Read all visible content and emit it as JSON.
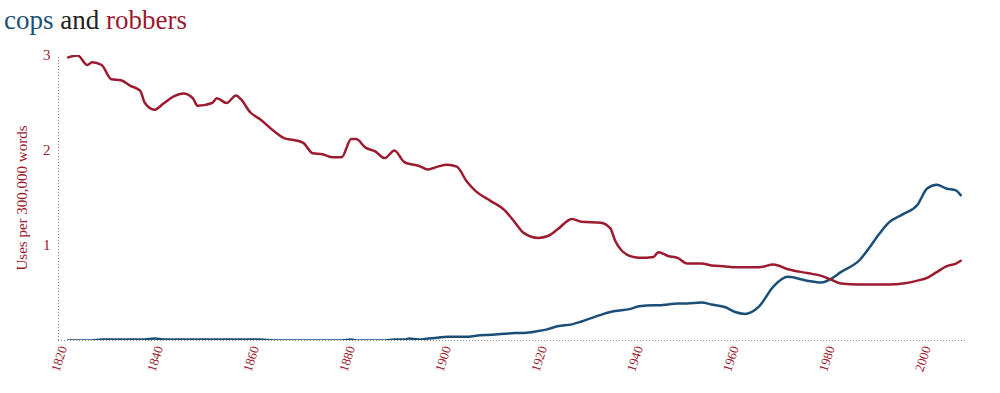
{
  "chart_data": {
    "type": "line",
    "title": "cops and robbers",
    "y_label": "Uses per 300,000 words",
    "x": [
      1821,
      1823,
      1825,
      1826,
      1828,
      1830,
      1832,
      1834,
      1836,
      1837,
      1839,
      1841,
      1843,
      1845,
      1847,
      1848,
      1851,
      1852,
      1854,
      1856,
      1857,
      1859,
      1861,
      1864,
      1866,
      1868,
      1870,
      1872,
      1874,
      1876,
      1878,
      1880,
      1881,
      1883,
      1885,
      1887,
      1889,
      1891,
      1892,
      1894,
      1896,
      1898,
      1900,
      1902,
      1904,
      1906,
      1909,
      1912,
      1914,
      1916,
      1919,
      1921,
      1923,
      1926,
      1928,
      1932,
      1934,
      1935,
      1938,
      1940,
      1943,
      1944,
      1946,
      1948,
      1950,
      1953,
      1955,
      1958,
      1960,
      1962,
      1965,
      1968,
      1971,
      1975,
      1978,
      1980,
      1982,
      1986,
      1988,
      1990,
      1992,
      1995,
      1998,
      2000,
      2002,
      2004,
      2006,
      2007
    ],
    "series": [
      {
        "name": "cops",
        "color": "#1b4f78",
        "values": [
          0,
          0,
          0,
          0,
          0.01,
          0.01,
          0.01,
          0.01,
          0.01,
          0.01,
          0.02,
          0.01,
          0.01,
          0.01,
          0.01,
          0.01,
          0.01,
          0.01,
          0.01,
          0.01,
          0.01,
          0.01,
          0.01,
          0,
          0,
          0,
          0,
          0,
          0,
          0,
          0,
          0.01,
          0,
          0,
          0,
          0,
          0.01,
          0.01,
          0.02,
          0.01,
          0.02,
          0.03,
          0.04,
          0.04,
          0.04,
          0.05,
          0.06,
          0.07,
          0.08,
          0.08,
          0.1,
          0.12,
          0.15,
          0.17,
          0.2,
          0.27,
          0.3,
          0.31,
          0.33,
          0.36,
          0.37,
          0.37,
          0.38,
          0.39,
          0.39,
          0.4,
          0.38,
          0.35,
          0.3,
          0.28,
          0.36,
          0.57,
          0.67,
          0.63,
          0.61,
          0.65,
          0.72,
          0.85,
          0.98,
          1.12,
          1.24,
          1.33,
          1.43,
          1.6,
          1.64,
          1.6,
          1.58,
          1.53
        ]
      },
      {
        "name": "robbers",
        "color": "#9b1b30",
        "values": [
          2.98,
          3.0,
          2.9,
          2.93,
          2.9,
          2.75,
          2.74,
          2.68,
          2.63,
          2.5,
          2.43,
          2.5,
          2.57,
          2.6,
          2.55,
          2.47,
          2.5,
          2.55,
          2.5,
          2.58,
          2.54,
          2.4,
          2.33,
          2.2,
          2.13,
          2.11,
          2.08,
          1.97,
          1.96,
          1.93,
          1.93,
          2.12,
          2.12,
          2.03,
          1.99,
          1.92,
          2.0,
          1.88,
          1.86,
          1.84,
          1.8,
          1.83,
          1.85,
          1.83,
          1.68,
          1.57,
          1.47,
          1.37,
          1.25,
          1.13,
          1.08,
          1.1,
          1.17,
          1.28,
          1.25,
          1.24,
          1.18,
          1.05,
          0.89,
          0.87,
          0.88,
          0.93,
          0.89,
          0.87,
          0.81,
          0.81,
          0.79,
          0.78,
          0.77,
          0.77,
          0.77,
          0.8,
          0.75,
          0.71,
          0.68,
          0.64,
          0.6,
          0.59,
          0.59,
          0.59,
          0.59,
          0.6,
          0.63,
          0.66,
          0.72,
          0.78,
          0.81,
          0.84
        ]
      }
    ],
    "xlim": [
      1819,
      2008
    ],
    "ylim": [
      0,
      3
    ],
    "xticks": [
      1820,
      1840,
      1860,
      1880,
      1900,
      1920,
      1940,
      1960,
      1980,
      2000
    ],
    "yticks": [
      1,
      2,
      3
    ],
    "grid": false
  }
}
